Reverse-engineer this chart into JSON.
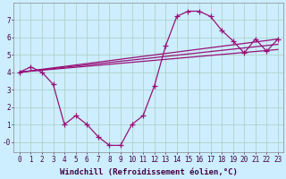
{
  "background_color": "#cceeff",
  "grid_color": "#aaccbb",
  "line_color": "#991177",
  "marker": "+",
  "markersize": 4,
  "linewidth": 0.9,
  "xlabel": "Windchill (Refroidissement éolien,°C)",
  "xlabel_fontsize": 6.5,
  "tick_fontsize": 5.5,
  "xlim": [
    -0.5,
    23.5
  ],
  "ylim": [
    -0.6,
    8.0
  ],
  "yticks": [
    0,
    1,
    2,
    3,
    4,
    5,
    6,
    7
  ],
  "ytick_labels": [
    "-0",
    "1",
    "2",
    "3",
    "4",
    "5",
    "6",
    "7"
  ],
  "xticks": [
    0,
    1,
    2,
    3,
    4,
    5,
    6,
    7,
    8,
    9,
    10,
    11,
    12,
    13,
    14,
    15,
    16,
    17,
    18,
    19,
    20,
    21,
    22,
    23
  ],
  "main_line_x": [
    0,
    1,
    2,
    3,
    4,
    5,
    6,
    7,
    8,
    9,
    10,
    11,
    12,
    13,
    14,
    15,
    16,
    17,
    18,
    19,
    20,
    21,
    22,
    23
  ],
  "main_line_y": [
    4.0,
    4.3,
    4.0,
    3.3,
    1.0,
    1.5,
    1.0,
    0.3,
    -0.2,
    -0.2,
    1.0,
    1.5,
    3.2,
    5.5,
    7.2,
    7.5,
    7.5,
    7.2,
    6.4,
    5.8,
    5.1,
    5.9,
    5.2,
    5.9
  ],
  "trend_line1_x": [
    0,
    23
  ],
  "trend_line1_y": [
    4.0,
    5.3
  ],
  "trend_line2_x": [
    0,
    23
  ],
  "trend_line2_y": [
    4.0,
    5.6
  ],
  "trend_line3_x": [
    0,
    23
  ],
  "trend_line3_y": [
    4.0,
    5.9
  ]
}
